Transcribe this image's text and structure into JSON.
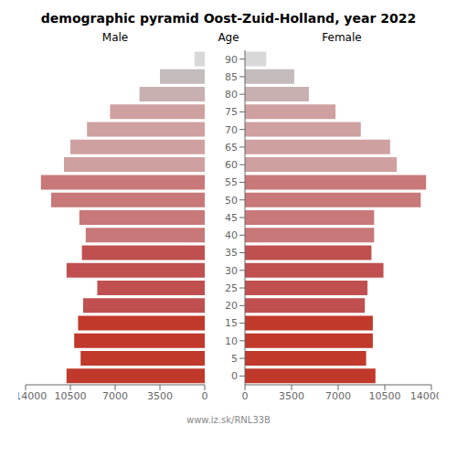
{
  "chart_data": {
    "type": "bar",
    "orientation": "horizontal",
    "title": "demographic pyramid Oost-Zuid-Holland, year 2022",
    "ylabel": "Age",
    "annotations": [
      "www.iz.sk/RNL33B"
    ],
    "categories": [
      "0",
      "5",
      "10",
      "15",
      "20",
      "25",
      "30",
      "35",
      "40",
      "45",
      "50",
      "55",
      "60",
      "65",
      "70",
      "75",
      "80",
      "85",
      "90"
    ],
    "series": [
      {
        "name": "Male",
        "values": [
          10800,
          9700,
          10200,
          9900,
          9500,
          8400,
          10800,
          9600,
          9300,
          9800,
          12000,
          12800,
          11000,
          10500,
          9200,
          7400,
          5100,
          3500,
          800
        ]
      },
      {
        "name": "Female",
        "values": [
          9800,
          9100,
          9600,
          9600,
          9000,
          9200,
          10400,
          9500,
          9700,
          9700,
          13200,
          13600,
          11400,
          10900,
          8700,
          6800,
          4800,
          3700,
          1600
        ]
      }
    ],
    "colors": [
      "#c0392b",
      "#c0392b",
      "#c0392b",
      "#c0392b",
      "#c05050",
      "#c05050",
      "#c05050",
      "#c05050",
      "#c87878",
      "#c87878",
      "#c87878",
      "#c87878",
      "#cfa0a0",
      "#cfa0a0",
      "#cfa0a0",
      "#cfa0a0",
      "#c8b0b0",
      "#c4bcbc",
      "#d8d8d8"
    ],
    "xlim": [
      0,
      14000
    ],
    "xticks": [
      0,
      3500,
      7000,
      10500,
      14000
    ],
    "grid": false
  }
}
